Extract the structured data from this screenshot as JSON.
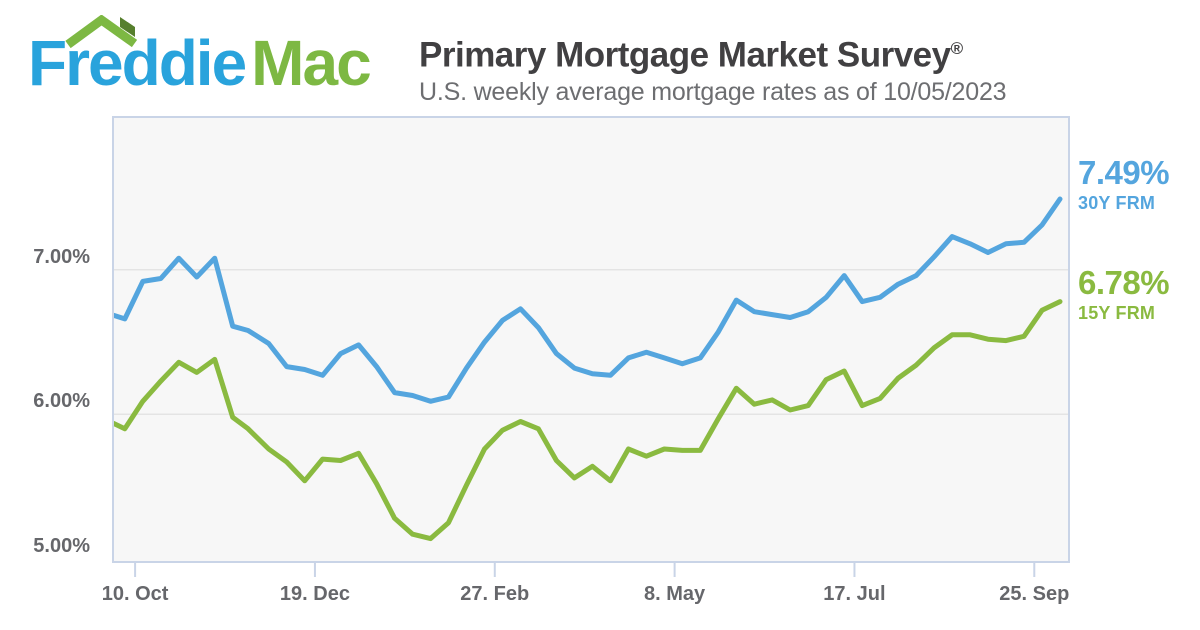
{
  "brand": {
    "part1": "Freddie",
    "part2": "Mac"
  },
  "header": {
    "title": "Primary Mortgage Market Survey",
    "registered_mark": "®",
    "subtitle": "U.S. weekly average mortgage rates as of 10/05/2023"
  },
  "colors": {
    "logo_blue": "#29A3DC",
    "logo_green": "#7DB843",
    "roof_dark_green": "#567F2D",
    "title_text": "#414042",
    "subtitle_text": "#6D6E71",
    "axis_label": "#66676B",
    "plot_background": "#F7F7F7",
    "plot_border": "#C9D4E7",
    "gridline": "#E4E4E4",
    "line_30y": "#54A5DE",
    "line_15y": "#8ABA40"
  },
  "chart_data": {
    "type": "line",
    "title": "Primary Mortgage Market Survey",
    "subtitle": "U.S. weekly average mortgage rates as of 10/05/2023",
    "grid": "horizontal",
    "legend_position": "right",
    "ylim": [
      5.0,
      8.0
    ],
    "y_ticks": [
      {
        "label": "7.00%",
        "value": 7.0
      },
      {
        "label": "6.00%",
        "value": 6.0
      },
      {
        "label": "5.00%",
        "value": 5.0
      }
    ],
    "x_ticks": [
      {
        "label": "10. Oct",
        "date": "2022-10-10"
      },
      {
        "label": "19. Dec",
        "date": "2022-12-19"
      },
      {
        "label": "27. Feb",
        "date": "2023-02-27"
      },
      {
        "label": "8. May",
        "date": "2023-05-08"
      },
      {
        "label": "17. Jul",
        "date": "2023-07-17"
      },
      {
        "label": "25. Sep",
        "date": "2023-09-25"
      }
    ],
    "x": [
      "2022-09-29",
      "2022-10-06",
      "2022-10-13",
      "2022-10-20",
      "2022-10-27",
      "2022-11-03",
      "2022-11-10",
      "2022-11-17",
      "2022-11-23",
      "2022-12-01",
      "2022-12-08",
      "2022-12-15",
      "2022-12-22",
      "2022-12-29",
      "2023-01-05",
      "2023-01-12",
      "2023-01-19",
      "2023-01-26",
      "2023-02-02",
      "2023-02-09",
      "2023-02-16",
      "2023-02-23",
      "2023-03-02",
      "2023-03-09",
      "2023-03-16",
      "2023-03-23",
      "2023-03-30",
      "2023-04-06",
      "2023-04-13",
      "2023-04-20",
      "2023-04-27",
      "2023-05-04",
      "2023-05-11",
      "2023-05-18",
      "2023-05-25",
      "2023-06-01",
      "2023-06-08",
      "2023-06-15",
      "2023-06-22",
      "2023-06-29",
      "2023-07-06",
      "2023-07-13",
      "2023-07-20",
      "2023-07-27",
      "2023-08-03",
      "2023-08-10",
      "2023-08-17",
      "2023-08-24",
      "2023-08-31",
      "2023-09-07",
      "2023-09-14",
      "2023-09-21",
      "2023-09-28",
      "2023-10-05"
    ],
    "series": [
      {
        "name": "30Y FRM",
        "latest_label": "7.49%",
        "latest_value": 7.49,
        "color": "#54A5DE",
        "values": [
          6.7,
          6.66,
          6.92,
          6.94,
          7.08,
          6.95,
          7.08,
          6.61,
          6.58,
          6.49,
          6.33,
          6.31,
          6.27,
          6.42,
          6.48,
          6.33,
          6.15,
          6.13,
          6.09,
          6.12,
          6.32,
          6.5,
          6.65,
          6.73,
          6.6,
          6.42,
          6.32,
          6.28,
          6.27,
          6.39,
          6.43,
          6.39,
          6.35,
          6.39,
          6.57,
          6.79,
          6.71,
          6.69,
          6.67,
          6.71,
          6.81,
          6.96,
          6.78,
          6.81,
          6.9,
          6.96,
          7.09,
          7.23,
          7.18,
          7.12,
          7.18,
          7.19,
          7.31,
          7.49
        ]
      },
      {
        "name": "15Y FRM",
        "latest_label": "6.78%",
        "latest_value": 6.78,
        "color": "#8ABA40",
        "values": [
          5.96,
          5.9,
          6.09,
          6.23,
          6.36,
          6.29,
          6.38,
          5.98,
          5.9,
          5.76,
          5.67,
          5.54,
          5.69,
          5.68,
          5.73,
          5.52,
          5.28,
          5.17,
          5.14,
          5.25,
          5.51,
          5.76,
          5.89,
          5.95,
          5.9,
          5.68,
          5.56,
          5.64,
          5.54,
          5.76,
          5.71,
          5.76,
          5.75,
          5.75,
          5.97,
          6.18,
          6.07,
          6.1,
          6.03,
          6.06,
          6.24,
          6.3,
          6.06,
          6.11,
          6.25,
          6.34,
          6.46,
          6.55,
          6.55,
          6.52,
          6.51,
          6.54,
          6.72,
          6.78
        ]
      }
    ]
  }
}
